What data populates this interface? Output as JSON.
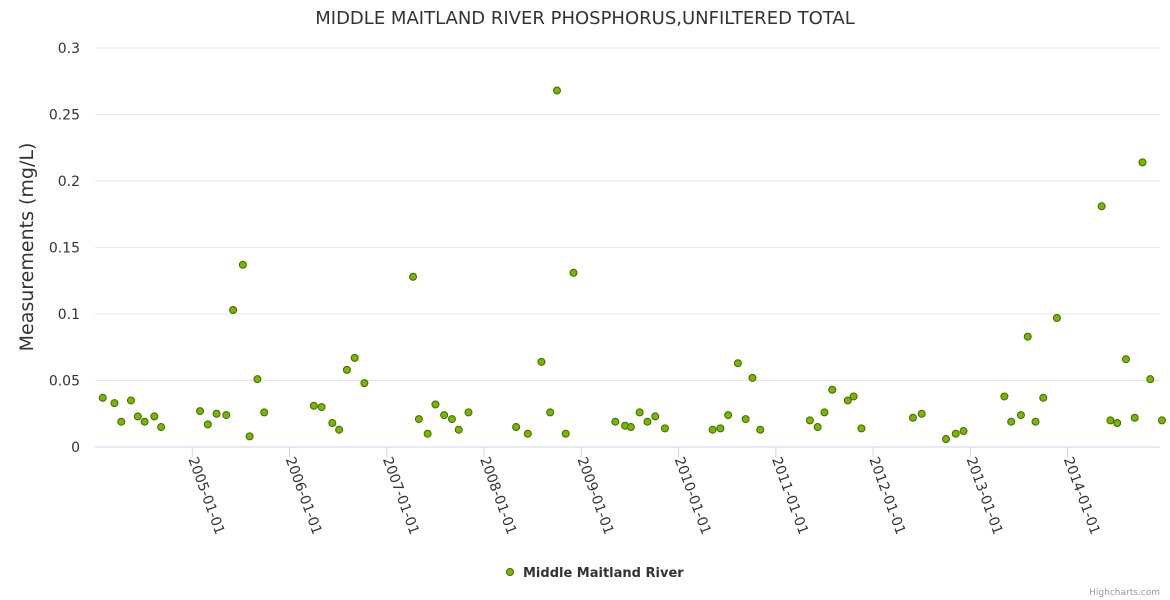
{
  "chart_data": {
    "type": "scatter",
    "title": "MIDDLE MAITLAND RIVER PHOSPHORUS,UNFILTERED TOTAL",
    "ylabel": "Measurements (mg/L)",
    "xlabel": "",
    "ylim": [
      0,
      0.3
    ],
    "yticks": [
      0,
      0.05,
      0.1,
      0.15,
      0.2,
      0.25,
      0.3
    ],
    "ytick_labels": [
      "0",
      "0.05",
      "0.1",
      "0.15",
      "0.2",
      "0.25",
      "0.3"
    ],
    "xlim": [
      2004.0,
      2014.95
    ],
    "xticks": [
      2005,
      2006,
      2007,
      2008,
      2009,
      2010,
      2011,
      2012,
      2013,
      2014
    ],
    "xtick_labels": [
      "2005-01-01",
      "2006-01-01",
      "2007-01-01",
      "2008-01-01",
      "2009-01-01",
      "2010-01-01",
      "2011-01-01",
      "2012-01-01",
      "2013-01-01",
      "2014-01-01"
    ],
    "grid": true,
    "legend": "bottom-center",
    "colors": {
      "point_fill": "#7cb500",
      "point_stroke": "#3d6b00",
      "grid": "#e6e6e6",
      "axis": "#ccd6eb"
    },
    "series": [
      {
        "name": "Middle Maitland River",
        "points": [
          [
            2004.08,
            0.037
          ],
          [
            2004.2,
            0.033
          ],
          [
            2004.27,
            0.019
          ],
          [
            2004.37,
            0.035
          ],
          [
            2004.44,
            0.023
          ],
          [
            2004.51,
            0.019
          ],
          [
            2004.61,
            0.023
          ],
          [
            2004.68,
            0.015
          ],
          [
            2005.08,
            0.027
          ],
          [
            2005.16,
            0.017
          ],
          [
            2005.25,
            0.025
          ],
          [
            2005.35,
            0.024
          ],
          [
            2005.42,
            0.103
          ],
          [
            2005.52,
            0.137
          ],
          [
            2005.59,
            0.008
          ],
          [
            2005.67,
            0.051
          ],
          [
            2005.74,
            0.026
          ],
          [
            2006.25,
            0.031
          ],
          [
            2006.33,
            0.03
          ],
          [
            2006.44,
            0.018
          ],
          [
            2006.51,
            0.013
          ],
          [
            2006.59,
            0.058
          ],
          [
            2006.67,
            0.067
          ],
          [
            2006.77,
            0.048
          ],
          [
            2007.27,
            0.128
          ],
          [
            2007.33,
            0.021
          ],
          [
            2007.42,
            0.01
          ],
          [
            2007.5,
            0.032
          ],
          [
            2007.59,
            0.024
          ],
          [
            2007.67,
            0.021
          ],
          [
            2007.74,
            0.013
          ],
          [
            2007.84,
            0.026
          ],
          [
            2008.33,
            0.015
          ],
          [
            2008.45,
            0.01
          ],
          [
            2008.59,
            0.064
          ],
          [
            2008.68,
            0.026
          ],
          [
            2008.75,
            0.268
          ],
          [
            2008.84,
            0.01
          ],
          [
            2008.92,
            0.131
          ],
          [
            2009.35,
            0.019
          ],
          [
            2009.45,
            0.016
          ],
          [
            2009.51,
            0.015
          ],
          [
            2009.6,
            0.026
          ],
          [
            2009.68,
            0.019
          ],
          [
            2009.76,
            0.023
          ],
          [
            2009.86,
            0.014
          ],
          [
            2010.35,
            0.013
          ],
          [
            2010.43,
            0.014
          ],
          [
            2010.51,
            0.024
          ],
          [
            2010.61,
            0.063
          ],
          [
            2010.69,
            0.021
          ],
          [
            2010.76,
            0.052
          ],
          [
            2010.84,
            0.013
          ],
          [
            2011.35,
            0.02
          ],
          [
            2011.43,
            0.015
          ],
          [
            2011.5,
            0.026
          ],
          [
            2011.58,
            0.043
          ],
          [
            2011.74,
            0.035
          ],
          [
            2011.8,
            0.038
          ],
          [
            2011.88,
            0.014
          ],
          [
            2012.41,
            0.022
          ],
          [
            2012.5,
            0.025
          ],
          [
            2012.75,
            0.006
          ],
          [
            2012.85,
            0.01
          ],
          [
            2012.93,
            0.012
          ],
          [
            2013.35,
            0.038
          ],
          [
            2013.42,
            0.019
          ],
          [
            2013.52,
            0.024
          ],
          [
            2013.59,
            0.083
          ],
          [
            2013.67,
            0.019
          ],
          [
            2013.75,
            0.037
          ],
          [
            2013.89,
            0.097
          ],
          [
            2014.35,
            0.181
          ],
          [
            2014.44,
            0.02
          ],
          [
            2014.51,
            0.018
          ],
          [
            2014.6,
            0.066
          ],
          [
            2014.69,
            0.022
          ],
          [
            2014.77,
            0.214
          ],
          [
            2014.85,
            0.051
          ],
          [
            2014.97,
            0.02
          ]
        ]
      }
    ]
  },
  "credits": "Highcharts.com"
}
